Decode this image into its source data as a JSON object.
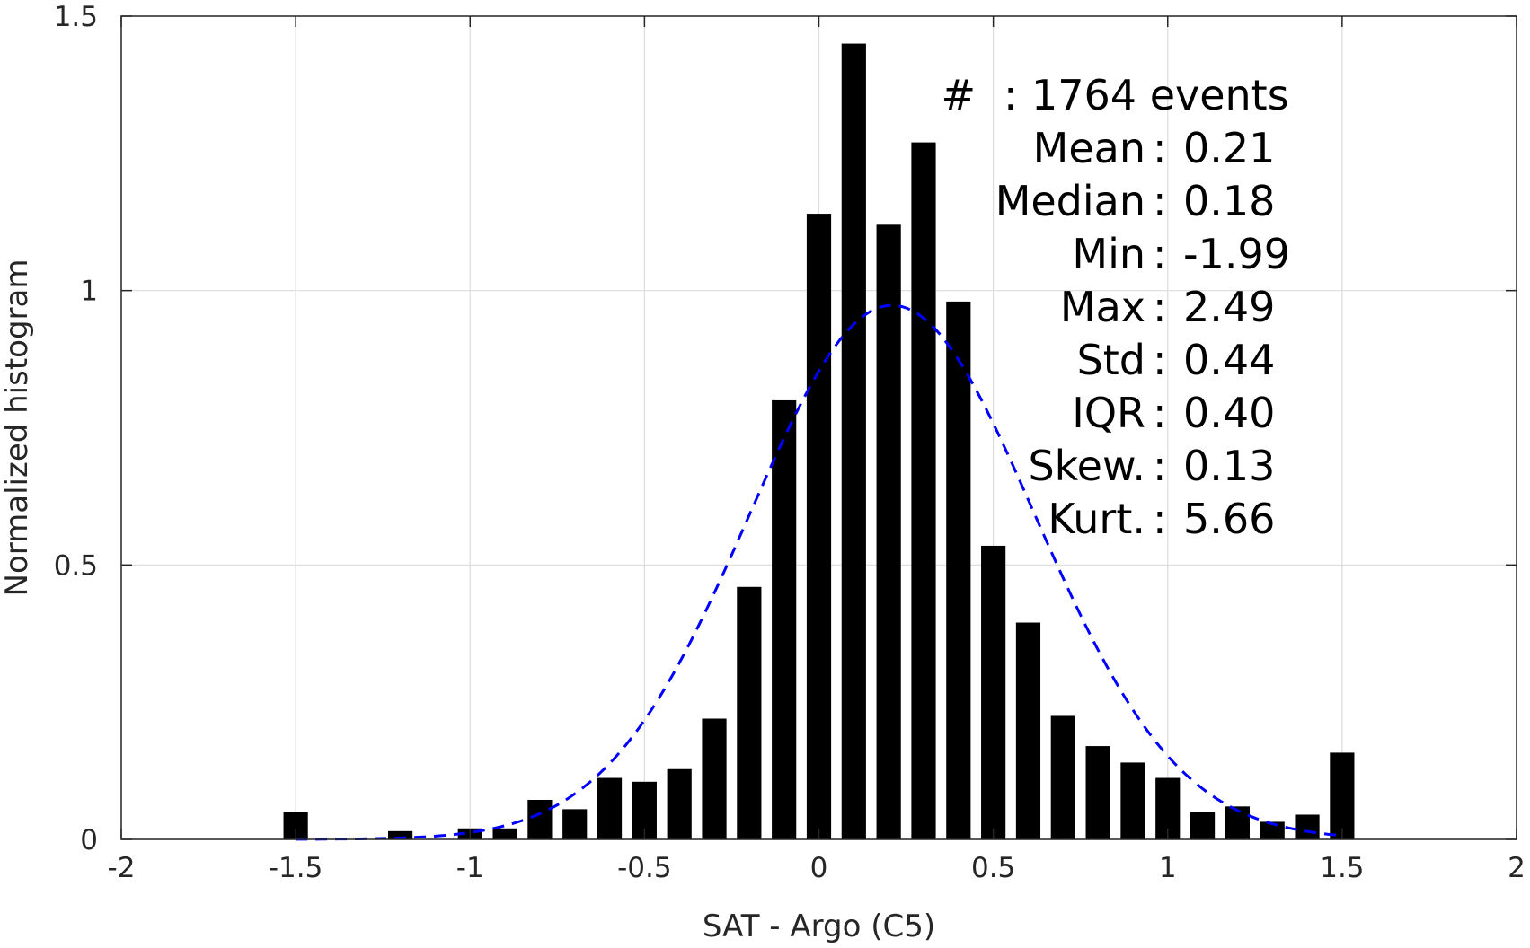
{
  "chart_data": {
    "type": "bar",
    "xlabel": "SAT - Argo (C5)",
    "ylabel": "Normalized histogram",
    "xlim": [
      -2,
      2
    ],
    "ylim": [
      0,
      1.5
    ],
    "xticks": [
      -2,
      -1.5,
      -1,
      -0.5,
      0,
      0.5,
      1,
      1.5,
      2
    ],
    "xtick_labels": [
      "-2",
      "-1.5",
      "-1",
      "-0.5",
      "0",
      "0.5",
      "1",
      "1.5",
      "2"
    ],
    "yticks": [
      0,
      0.5,
      1,
      1.5
    ],
    "ytick_labels": [
      "0",
      "0.5",
      "1",
      "1.5"
    ],
    "grid": true,
    "bar_color": "#000000",
    "bars": [
      {
        "x": -1.5,
        "y": 0.05
      },
      {
        "x": -1.2,
        "y": 0.015
      },
      {
        "x": -1.0,
        "y": 0.02
      },
      {
        "x": -0.9,
        "y": 0.02
      },
      {
        "x": -0.8,
        "y": 0.072
      },
      {
        "x": -0.7,
        "y": 0.055
      },
      {
        "x": -0.6,
        "y": 0.112
      },
      {
        "x": -0.5,
        "y": 0.105
      },
      {
        "x": -0.4,
        "y": 0.128
      },
      {
        "x": -0.3,
        "y": 0.22
      },
      {
        "x": -0.2,
        "y": 0.46
      },
      {
        "x": -0.1,
        "y": 0.8
      },
      {
        "x": 0.0,
        "y": 1.14
      },
      {
        "x": 0.1,
        "y": 1.45
      },
      {
        "x": 0.2,
        "y": 1.12
      },
      {
        "x": 0.3,
        "y": 1.27
      },
      {
        "x": 0.4,
        "y": 0.98
      },
      {
        "x": 0.5,
        "y": 0.535
      },
      {
        "x": 0.6,
        "y": 0.395
      },
      {
        "x": 0.7,
        "y": 0.225
      },
      {
        "x": 0.8,
        "y": 0.17
      },
      {
        "x": 0.9,
        "y": 0.14
      },
      {
        "x": 1.0,
        "y": 0.112
      },
      {
        "x": 1.1,
        "y": 0.05
      },
      {
        "x": 1.2,
        "y": 0.06
      },
      {
        "x": 1.3,
        "y": 0.032
      },
      {
        "x": 1.4,
        "y": 0.045
      },
      {
        "x": 1.5,
        "y": 0.158
      }
    ],
    "bar_width": 0.07,
    "fit": {
      "kind": "normal",
      "mean": 0.21,
      "std": 0.41,
      "x_range": [
        -1.5,
        1.5
      ],
      "color": "#0000ff",
      "style": "dashed"
    },
    "stats": [
      {
        "label": "#",
        "sep": ":",
        "value": "1764 events"
      },
      {
        "label": "Mean",
        "sep": ":",
        "value": "0.21"
      },
      {
        "label": "Median",
        "sep": ":",
        "value": "0.18"
      },
      {
        "label": "Min",
        "sep": ":",
        "value": "-1.99"
      },
      {
        "label": "Max",
        "sep": ":",
        "value": "2.49"
      },
      {
        "label": "Std",
        "sep": ":",
        "value": "0.44"
      },
      {
        "label": "IQR",
        "sep": ":",
        "value": "0.40"
      },
      {
        "label": "Skew.",
        "sep": ":",
        "value": "0.13"
      },
      {
        "label": "Kurt.",
        "sep": ":",
        "value": "5.66"
      }
    ]
  }
}
